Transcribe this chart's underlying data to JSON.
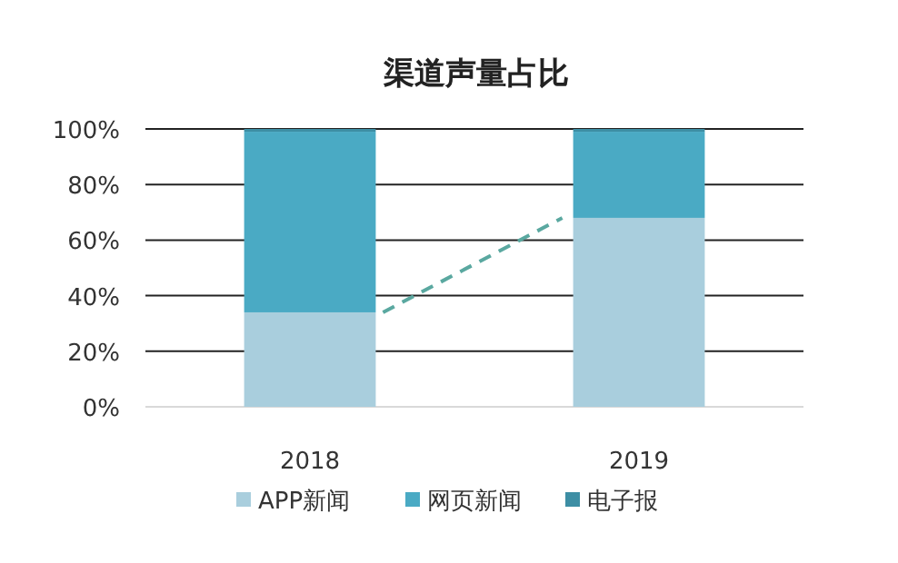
{
  "chart_data": {
    "type": "bar",
    "title": "渠道声量占比",
    "stacked": true,
    "categories": [
      "2018",
      "2019"
    ],
    "series": [
      {
        "name": "APP新闻",
        "color": "#a9cedd",
        "values": [
          34,
          68
        ]
      },
      {
        "name": "网页新闻",
        "color": "#4aaac4",
        "values": [
          65,
          31
        ]
      },
      {
        "name": "电子报",
        "color": "#3d8ea4",
        "values": [
          1,
          1
        ]
      }
    ],
    "ylim": [
      0,
      100
    ],
    "yticks": [
      {
        "value": 0,
        "label": "0%"
      },
      {
        "value": 20,
        "label": "20%"
      },
      {
        "value": 40,
        "label": "40%"
      },
      {
        "value": 60,
        "label": "60%"
      },
      {
        "value": 80,
        "label": "80%"
      },
      {
        "value": 100,
        "label": "100%"
      }
    ],
    "grid": "y",
    "legend": "bottom"
  }
}
